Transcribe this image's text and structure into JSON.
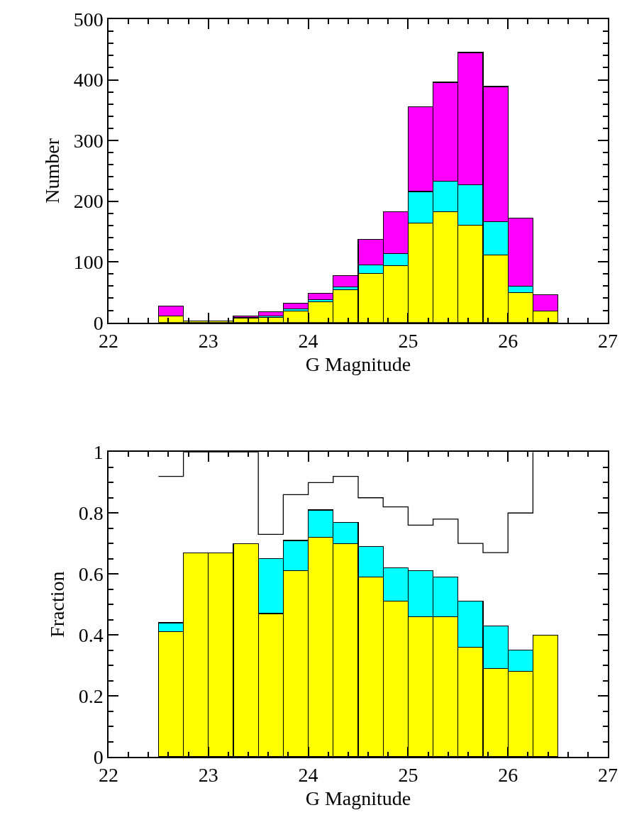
{
  "chart_data": [
    {
      "type": "bar",
      "stacked": true,
      "x": [
        22.625,
        22.875,
        23.125,
        23.375,
        23.625,
        23.875,
        24.125,
        24.375,
        24.625,
        24.875,
        25.125,
        25.375,
        25.625,
        25.875,
        26.125,
        26.375
      ],
      "series": [
        {
          "color": "#ffff00",
          "values": [
            11,
            3,
            3,
            7,
            8,
            19,
            34,
            54,
            81,
            94,
            164,
            183,
            160,
            111,
            49,
            19
          ]
        },
        {
          "color": "#00ffff",
          "values": [
            null,
            null,
            null,
            1,
            3,
            3,
            4,
            5,
            14,
            20,
            52,
            50,
            67,
            55,
            11,
            null
          ]
        },
        {
          "color": "#ff00ff",
          "values": [
            16,
            null,
            null,
            3,
            7,
            10,
            10,
            18,
            42,
            69,
            140,
            163,
            218,
            223,
            112,
            27
          ]
        }
      ],
      "xlim": [
        22,
        27
      ],
      "xticks": [
        22,
        23,
        24,
        25,
        26,
        27
      ],
      "ylim": [
        0,
        500
      ],
      "yticks": [
        0,
        100,
        200,
        300,
        400,
        500
      ],
      "xlabel": "G Magnitude",
      "ylabel": "Number",
      "grid": false
    },
    {
      "type": "bar",
      "stacked": true,
      "x": [
        22.625,
        22.875,
        23.125,
        23.375,
        23.625,
        23.875,
        24.125,
        24.375,
        24.625,
        24.875,
        25.125,
        25.375,
        25.625,
        25.875,
        26.125,
        26.375
      ],
      "series": [
        {
          "color": "#ffff00",
          "values": [
            0.41,
            0.67,
            0.67,
            0.7,
            0.47,
            0.61,
            0.72,
            0.7,
            0.59,
            0.51,
            0.46,
            0.46,
            0.36,
            0.29,
            0.28,
            0.4
          ]
        },
        {
          "color": "#00ffff",
          "values": [
            0.03,
            null,
            null,
            null,
            0.18,
            0.1,
            0.09,
            0.07,
            0.1,
            0.11,
            0.15,
            0.13,
            0.15,
            0.14,
            0.07,
            null
          ]
        },
        {
          "type": "step",
          "color": "#000000",
          "x": [
            22.5,
            22.75,
            23.0,
            23.25,
            23.5,
            23.75,
            24.0,
            24.25,
            24.5,
            24.75,
            25.0,
            25.25,
            25.5,
            25.75,
            26.0,
            26.25
          ],
          "values": [
            0.92,
            1.0,
            1.0,
            1.0,
            0.73,
            0.86,
            0.9,
            0.92,
            0.85,
            0.82,
            0.76,
            0.78,
            0.7,
            0.67,
            0.8,
            1.0
          ]
        }
      ],
      "xlim": [
        22,
        27
      ],
      "xticks": [
        22,
        23,
        24,
        25,
        26,
        27
      ],
      "ylim": [
        0,
        1
      ],
      "yticks": [
        0,
        0.2,
        0.4,
        0.6,
        0.8,
        1
      ],
      "xlabel": "G Magnitude",
      "ylabel": "Fraction",
      "grid": false
    }
  ]
}
